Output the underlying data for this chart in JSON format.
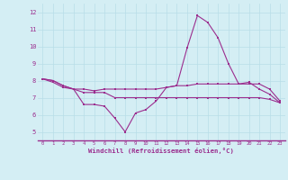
{
  "x": [
    0,
    1,
    2,
    3,
    4,
    5,
    6,
    7,
    8,
    9,
    10,
    11,
    12,
    13,
    14,
    15,
    16,
    17,
    18,
    19,
    20,
    21,
    22,
    23
  ],
  "line1": [
    8.1,
    8.0,
    7.7,
    7.5,
    6.6,
    6.6,
    6.5,
    5.8,
    5.0,
    6.1,
    6.3,
    6.8,
    7.6,
    7.7,
    9.9,
    11.8,
    11.4,
    10.5,
    9.0,
    7.8,
    7.9,
    7.5,
    7.2,
    6.7
  ],
  "line2": [
    8.1,
    7.9,
    7.6,
    7.5,
    7.5,
    7.4,
    7.5,
    7.5,
    7.5,
    7.5,
    7.5,
    7.5,
    7.6,
    7.7,
    7.7,
    7.8,
    7.8,
    7.8,
    7.8,
    7.8,
    7.8,
    7.8,
    7.5,
    6.8
  ],
  "line3": [
    8.1,
    8.0,
    7.7,
    7.5,
    7.3,
    7.3,
    7.3,
    7.0,
    7.0,
    7.0,
    7.0,
    7.0,
    7.0,
    7.0,
    7.0,
    7.0,
    7.0,
    7.0,
    7.0,
    7.0,
    7.0,
    7.0,
    6.9,
    6.7
  ],
  "line_color": "#9b2d8e",
  "bg_color": "#d4eef4",
  "grid_color": "#b8dde8",
  "xlabel": "Windchill (Refroidissement éolien,°C)",
  "ylim": [
    4.5,
    12.5
  ],
  "xlim": [
    -0.5,
    23.5
  ],
  "yticks": [
    5,
    6,
    7,
    8,
    9,
    10,
    11,
    12
  ],
  "xticks": [
    0,
    1,
    2,
    3,
    4,
    5,
    6,
    7,
    8,
    9,
    10,
    11,
    12,
    13,
    14,
    15,
    16,
    17,
    18,
    19,
    20,
    21,
    22,
    23
  ]
}
